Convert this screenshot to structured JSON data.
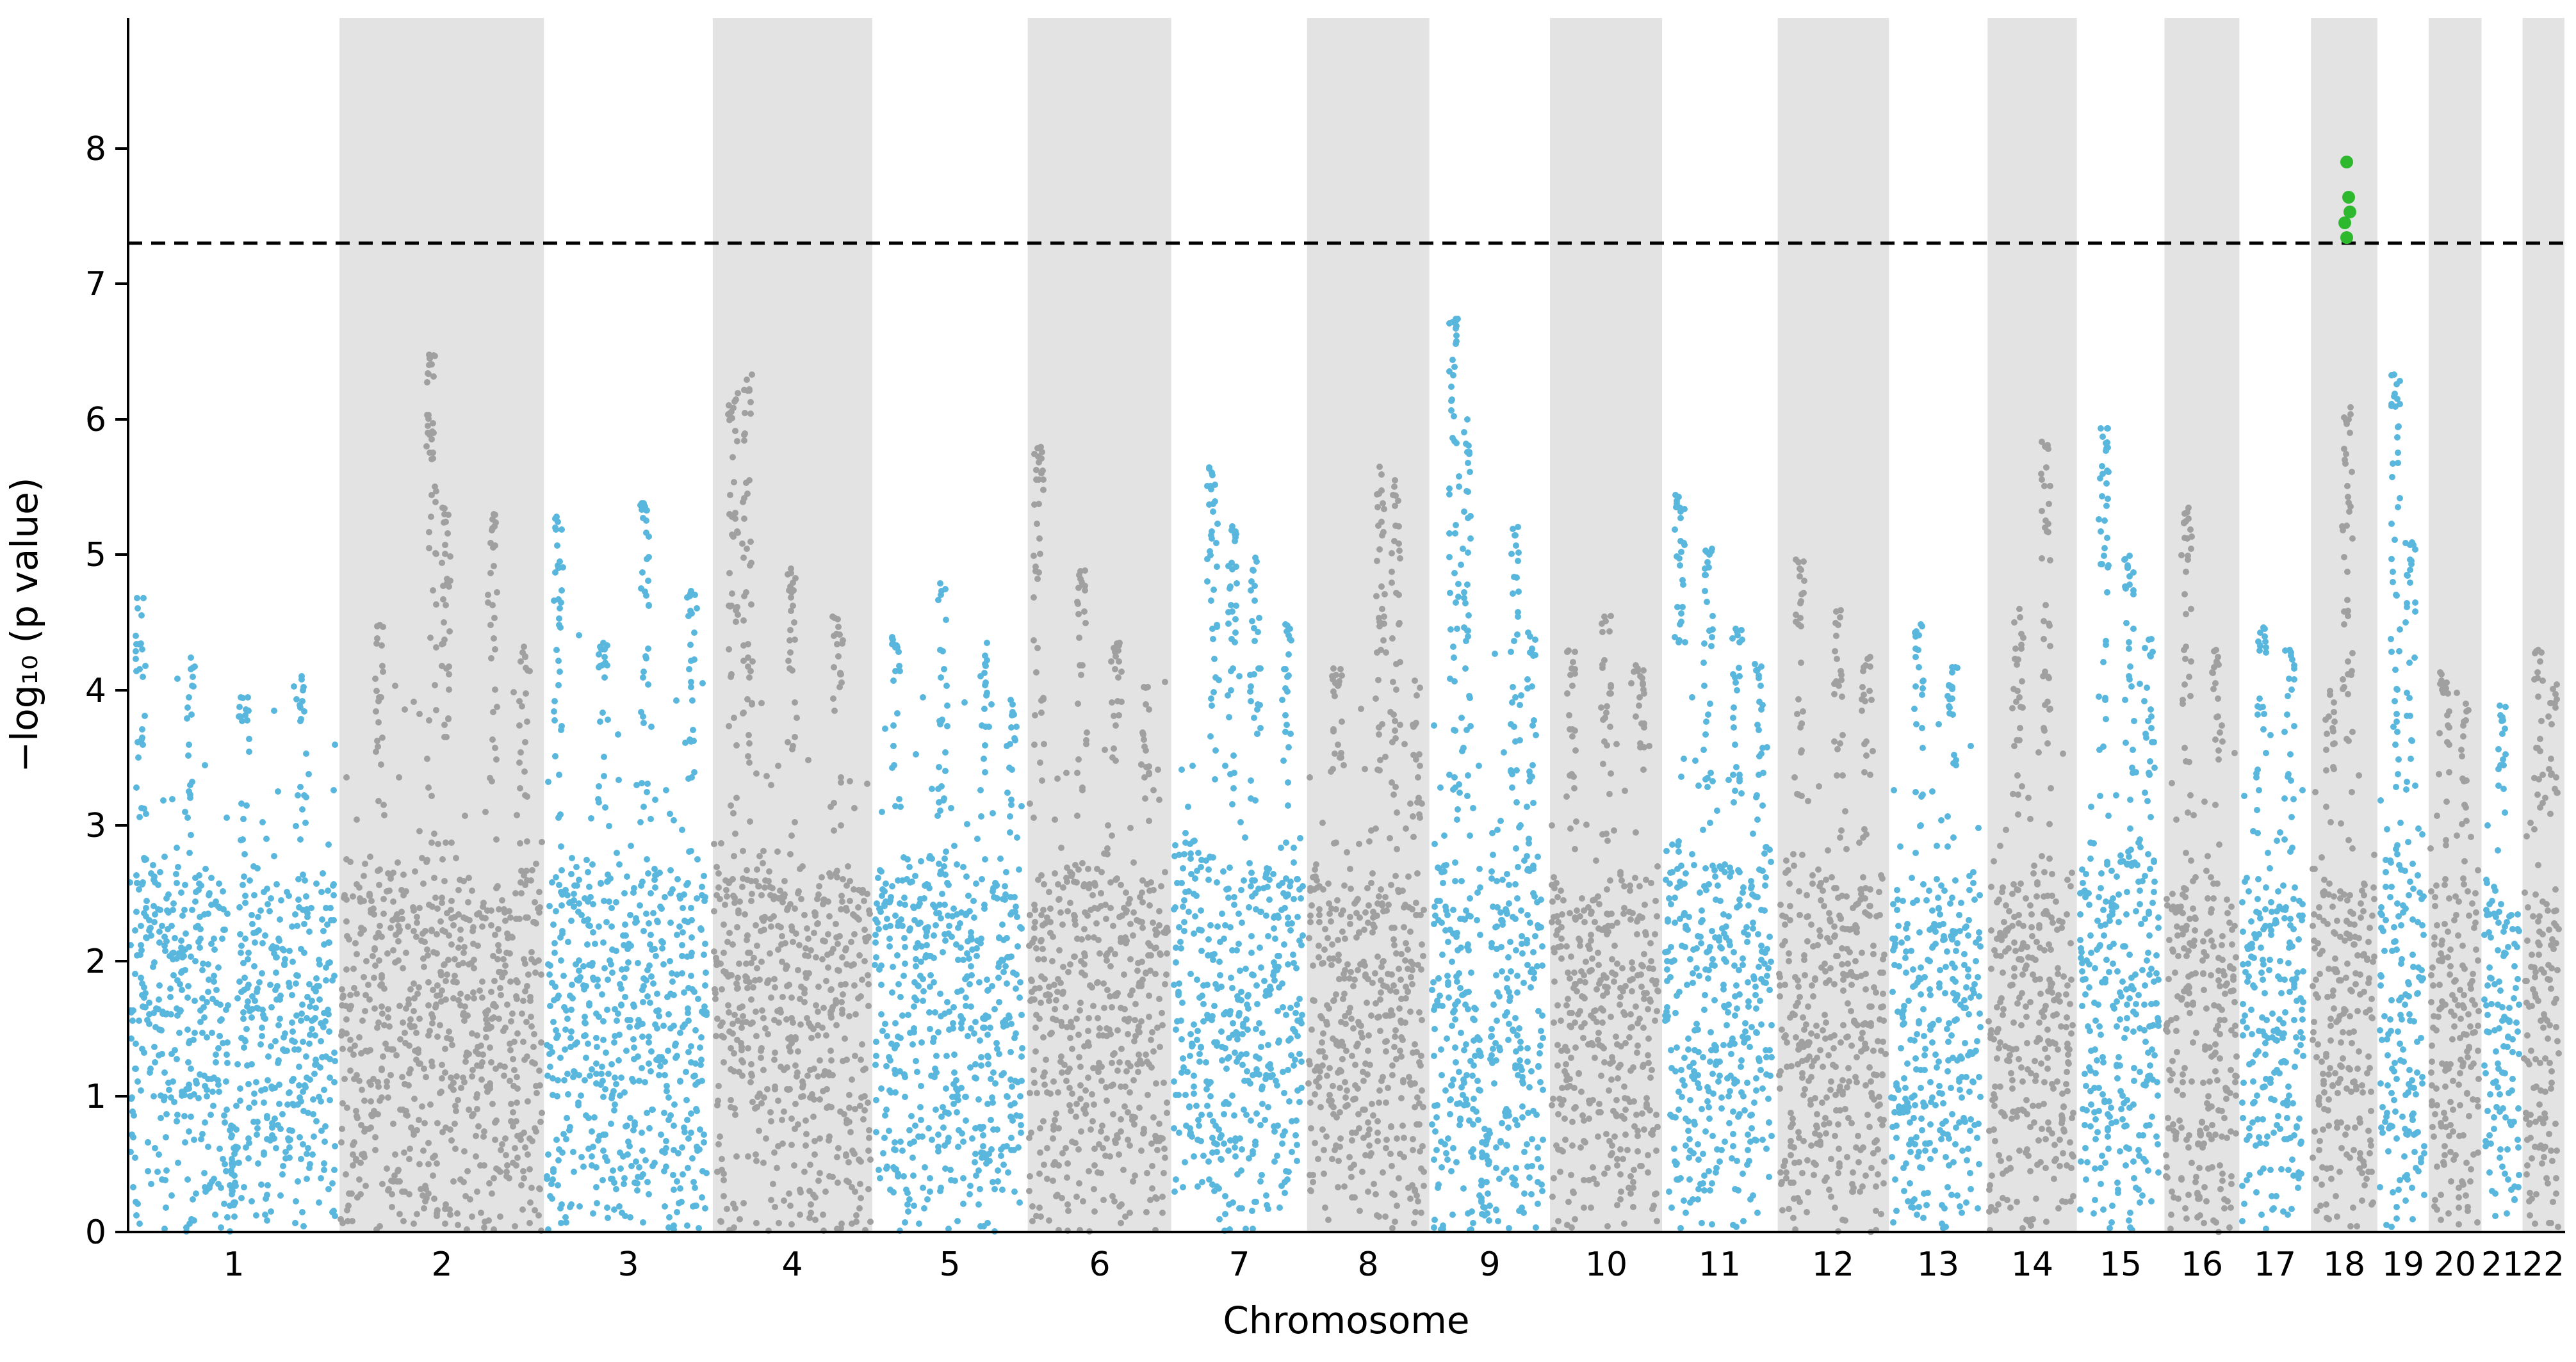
{
  "chart_data": {
    "type": "scatter",
    "variant": "manhattan",
    "title": "",
    "xlabel": "Chromosome",
    "ylabel": "−log₁₀ (p value)",
    "ylim": [
      0,
      8.93
    ],
    "yticks": [
      0,
      1,
      2,
      3,
      4,
      5,
      6,
      7,
      8
    ],
    "significance_threshold": 7.3,
    "threshold_line_style": "dashed",
    "legend": "none",
    "grid": "off",
    "colors": {
      "odd_chromosome": "#59b7de",
      "even_chromosome": "#a0a0a0",
      "even_band_background": "#e3e3e3",
      "significant": "#2eb82e",
      "threshold_line": "#000000",
      "axis": "#000000"
    },
    "chromosomes": [
      {
        "label": "1",
        "length_mb": 249,
        "grass_top": 3.0,
        "gap": {
          "pos": 0.5,
          "w": 0.02
        },
        "peaks": [
          {
            "pos": 0.06,
            "h": 4.7
          },
          {
            "pos": 0.3,
            "h": 4.25
          },
          {
            "pos": 0.55,
            "h": 3.95
          },
          {
            "pos": 0.82,
            "h": 4.15
          }
        ]
      },
      {
        "label": "2",
        "length_mb": 243,
        "grass_top": 3.0,
        "peaks": [
          {
            "pos": 0.2,
            "h": 4.5
          },
          {
            "pos": 0.45,
            "h": 6.5
          },
          {
            "pos": 0.52,
            "h": 5.35
          },
          {
            "pos": 0.75,
            "h": 5.3
          },
          {
            "pos": 0.9,
            "h": 4.35
          }
        ]
      },
      {
        "label": "3",
        "length_mb": 198,
        "grass_top": 3.05,
        "peaks": [
          {
            "pos": 0.08,
            "h": 5.3
          },
          {
            "pos": 0.35,
            "h": 4.4
          },
          {
            "pos": 0.6,
            "h": 5.4
          },
          {
            "pos": 0.88,
            "h": 4.75
          }
        ]
      },
      {
        "label": "4",
        "length_mb": 190,
        "grass_top": 3.0,
        "peaks": [
          {
            "pos": 0.13,
            "h": 6.2
          },
          {
            "pos": 0.22,
            "h": 6.4
          },
          {
            "pos": 0.5,
            "h": 4.9
          },
          {
            "pos": 0.78,
            "h": 4.6
          }
        ]
      },
      {
        "label": "5",
        "length_mb": 182,
        "grass_top": 3.0,
        "peaks": [
          {
            "pos": 0.15,
            "h": 4.45
          },
          {
            "pos": 0.45,
            "h": 4.8
          },
          {
            "pos": 0.72,
            "h": 4.35
          },
          {
            "pos": 0.9,
            "h": 3.95
          }
        ]
      },
      {
        "label": "6",
        "length_mb": 171,
        "grass_top": 2.95,
        "peaks": [
          {
            "pos": 0.08,
            "h": 5.8
          },
          {
            "pos": 0.38,
            "h": 4.9
          },
          {
            "pos": 0.62,
            "h": 4.35
          },
          {
            "pos": 0.82,
            "h": 4.05
          }
        ]
      },
      {
        "label": "7",
        "length_mb": 159,
        "grass_top": 3.1,
        "peaks": [
          {
            "pos": 0.3,
            "h": 5.65
          },
          {
            "pos": 0.45,
            "h": 5.25
          },
          {
            "pos": 0.62,
            "h": 5.0
          },
          {
            "pos": 0.85,
            "h": 4.5
          }
        ]
      },
      {
        "label": "8",
        "length_mb": 146,
        "grass_top": 2.95,
        "peaks": [
          {
            "pos": 0.25,
            "h": 4.2
          },
          {
            "pos": 0.6,
            "h": 5.65
          },
          {
            "pos": 0.72,
            "h": 5.55
          },
          {
            "pos": 0.9,
            "h": 4.1
          }
        ]
      },
      {
        "label": "9",
        "length_mb": 141,
        "grass_top": 3.0,
        "gap": {
          "pos": 0.45,
          "w": 0.035
        },
        "peaks": [
          {
            "pos": 0.2,
            "h": 6.75
          },
          {
            "pos": 0.3,
            "h": 6.0
          },
          {
            "pos": 0.72,
            "h": 5.3
          },
          {
            "pos": 0.85,
            "h": 4.45
          }
        ]
      },
      {
        "label": "10",
        "length_mb": 134,
        "grass_top": 2.9,
        "peaks": [
          {
            "pos": 0.2,
            "h": 4.3
          },
          {
            "pos": 0.5,
            "h": 4.6
          },
          {
            "pos": 0.8,
            "h": 4.2
          }
        ]
      },
      {
        "label": "11",
        "length_mb": 135,
        "grass_top": 3.05,
        "peaks": [
          {
            "pos": 0.15,
            "h": 5.45
          },
          {
            "pos": 0.4,
            "h": 5.2
          },
          {
            "pos": 0.65,
            "h": 4.6
          },
          {
            "pos": 0.85,
            "h": 4.2
          }
        ]
      },
      {
        "label": "12",
        "length_mb": 133,
        "grass_top": 2.95,
        "peaks": [
          {
            "pos": 0.2,
            "h": 5.0
          },
          {
            "pos": 0.55,
            "h": 4.6
          },
          {
            "pos": 0.8,
            "h": 4.3
          }
        ]
      },
      {
        "label": "13",
        "length_mb": 115,
        "grass_top": 2.9,
        "peaks": [
          {
            "pos": 0.3,
            "h": 4.5
          },
          {
            "pos": 0.65,
            "h": 4.2
          }
        ]
      },
      {
        "label": "14",
        "length_mb": 107,
        "grass_top": 2.9,
        "peaks": [
          {
            "pos": 0.35,
            "h": 4.6
          },
          {
            "pos": 0.65,
            "h": 5.9
          }
        ]
      },
      {
        "label": "15",
        "length_mb": 102,
        "grass_top": 3.1,
        "peaks": [
          {
            "pos": 0.3,
            "h": 5.95
          },
          {
            "pos": 0.6,
            "h": 5.0
          },
          {
            "pos": 0.82,
            "h": 4.4
          }
        ]
      },
      {
        "label": "16",
        "length_mb": 90,
        "grass_top": 2.85,
        "gap": {
          "pos": 0.48,
          "w": 0.03
        },
        "peaks": [
          {
            "pos": 0.3,
            "h": 5.4
          },
          {
            "pos": 0.7,
            "h": 4.3
          }
        ]
      },
      {
        "label": "17",
        "length_mb": 83,
        "grass_top": 2.9,
        "peaks": [
          {
            "pos": 0.3,
            "h": 4.5
          },
          {
            "pos": 0.7,
            "h": 4.35
          }
        ]
      },
      {
        "label": "18",
        "length_mb": 80,
        "grass_top": 2.95,
        "peaks": [
          {
            "pos": 0.3,
            "h": 4.0
          },
          {
            "pos": 0.55,
            "h": 6.1
          }
        ]
      },
      {
        "label": "19",
        "length_mb": 59,
        "grass_top": 3.05,
        "peaks": [
          {
            "pos": 0.35,
            "h": 6.35
          },
          {
            "pos": 0.65,
            "h": 5.1
          }
        ]
      },
      {
        "label": "20",
        "length_mb": 64,
        "grass_top": 2.85,
        "peaks": [
          {
            "pos": 0.3,
            "h": 4.2
          },
          {
            "pos": 0.7,
            "h": 3.9
          }
        ]
      },
      {
        "label": "21",
        "length_mb": 47,
        "grass_top": 2.8,
        "peaks": [
          {
            "pos": 0.5,
            "h": 3.9
          }
        ]
      },
      {
        "label": "22",
        "length_mb": 51,
        "grass_top": 2.95,
        "peaks": [
          {
            "pos": 0.4,
            "h": 4.4
          },
          {
            "pos": 0.72,
            "h": 4.05
          }
        ]
      }
    ],
    "significant_hits": {
      "chromosome": "18",
      "pos": 0.55,
      "neg_log10_p": [
        7.9,
        7.64,
        7.53,
        7.45,
        7.34
      ]
    }
  }
}
